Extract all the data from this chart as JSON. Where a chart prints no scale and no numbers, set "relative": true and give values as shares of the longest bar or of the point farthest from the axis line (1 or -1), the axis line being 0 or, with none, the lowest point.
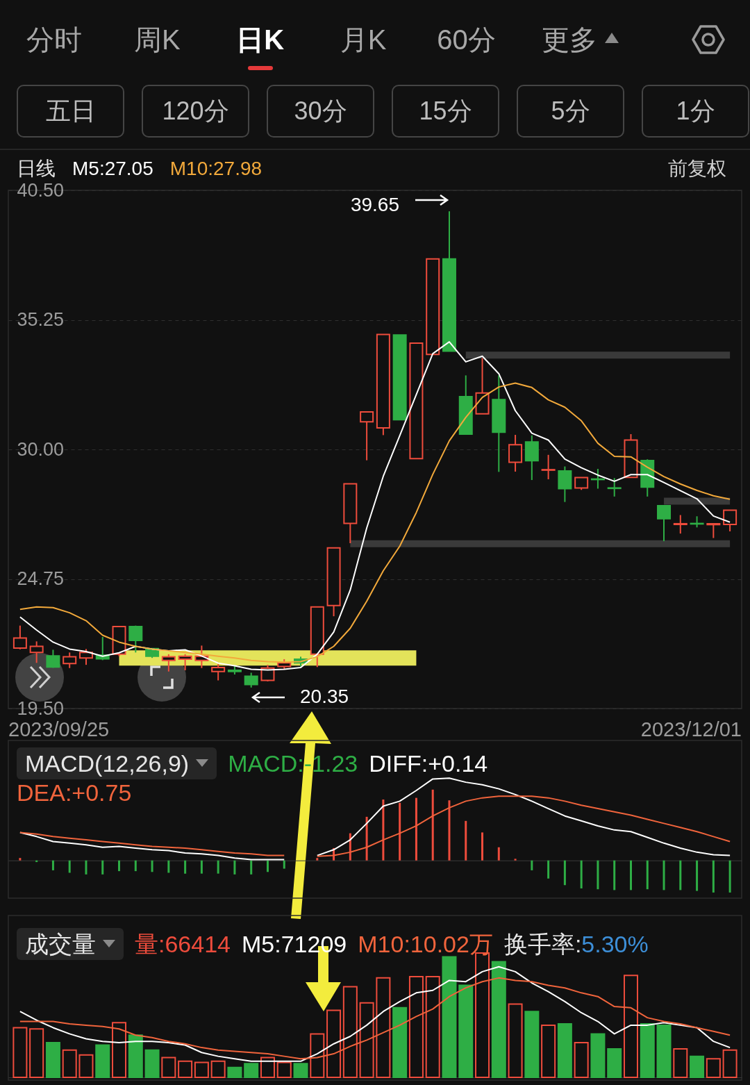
{
  "chart_data": [
    {
      "type": "other",
      "annotations": [
        "分时",
        "周K",
        "日K",
        "月K",
        "60分",
        "更多"
      ]
    },
    {
      "type": "other",
      "annotations": [
        "五日",
        "120分",
        "30分",
        "15分",
        "5分",
        "1分"
      ]
    },
    {
      "type": "candlestick",
      "title": "日线",
      "legend": "top left",
      "grid": "y",
      "categories": [
        null,
        null,
        null,
        null,
        null,
        null,
        null,
        null,
        null,
        null,
        null,
        null,
        null,
        null,
        null,
        null,
        null,
        null,
        null,
        null,
        null,
        null,
        null,
        null,
        null,
        null,
        null,
        null,
        null,
        null,
        null,
        null,
        null,
        null,
        null,
        null,
        null,
        null,
        null,
        null,
        null,
        null,
        null,
        null
      ],
      "ylim": [
        19.5,
        40.5
      ],
      "yticks": [
        {
          "value": 19.5,
          "label": "19.50"
        },
        24.75,
        {
          "value": 30,
          "label": "30.00"
        },
        35.25,
        {
          "value": 40.5,
          "label": "40.50"
        }
      ],
      "ohlc": [
        [
          21.95,
          22.86,
          21.9,
          22.36
        ],
        [
          21.77,
          22.22,
          21.35,
          22.02
        ],
        [
          21.63,
          21.88,
          21.15,
          21.18
        ],
        [
          21.32,
          21.77,
          21.14,
          21.6
        ],
        [
          21.55,
          21.91,
          21.27,
          21.77
        ],
        [
          21.66,
          22.4,
          21.46,
          21.51
        ],
        [
          21.7,
          22.82,
          21.62,
          22.82
        ],
        [
          22.82,
          22.86,
          21.77,
          22.26
        ],
        [
          21.93,
          21.95,
          21.55,
          21.62
        ],
        [
          21.45,
          21.7,
          21.0,
          21.6
        ],
        [
          21.5,
          21.7,
          21.05,
          21.62
        ],
        [
          21.45,
          22.05,
          21.14,
          21.62
        ],
        [
          21.0,
          21.3,
          20.64,
          21.16
        ],
        [
          21.05,
          21.23,
          20.88,
          21.0
        ],
        [
          20.81,
          20.95,
          20.35,
          20.47
        ],
        [
          20.64,
          21.27,
          20.6,
          21.14
        ],
        [
          21.2,
          21.5,
          21.1,
          21.35
        ],
        [
          21.5,
          21.6,
          21.2,
          21.35
        ],
        [
          21.7,
          23.62,
          21.18,
          23.62
        ],
        [
          23.67,
          26.01,
          23.24,
          26.01
        ],
        [
          27.0,
          28.61,
          26.2,
          28.61
        ],
        [
          31.12,
          31.52,
          29.56,
          31.52
        ],
        [
          30.87,
          34.66,
          30.58,
          34.66
        ],
        [
          34.64,
          34.64,
          31.2,
          31.2
        ],
        [
          29.63,
          34.31,
          29.63,
          34.31
        ],
        [
          33.85,
          37.72,
          33.85,
          37.72
        ],
        [
          37.72,
          39.65,
          33.98,
          33.98
        ],
        [
          32.14,
          33.0,
          30.62,
          30.62
        ],
        [
          31.44,
          33.7,
          31.44,
          32.29
        ],
        [
          32.02,
          33.0,
          29.09,
          30.7
        ],
        [
          29.48,
          30.59,
          29.1,
          30.19
        ],
        [
          30.3,
          30.57,
          28.76,
          29.54
        ],
        [
          29.16,
          29.78,
          28.79,
          29.18
        ],
        [
          29.13,
          29.31,
          27.87,
          28.41
        ],
        [
          28.44,
          28.86,
          28.36,
          28.86
        ],
        [
          28.8,
          29.21,
          28.41,
          28.78
        ],
        [
          28.44,
          28.84,
          28.09,
          28.42
        ],
        [
          28.87,
          30.62,
          28.87,
          30.38
        ],
        [
          29.55,
          29.6,
          28.09,
          28.47
        ],
        [
          27.72,
          27.72,
          26.28,
          27.19
        ],
        [
          26.96,
          27.34,
          26.59,
          26.99
        ],
        [
          27.0,
          27.29,
          26.84,
          26.98
        ],
        [
          26.95,
          26.99,
          26.41,
          26.99
        ],
        [
          26.96,
          27.54,
          26.68,
          27.54
        ]
      ],
      "colors": [
        "#ee4c3c",
        "#ee4c3c",
        "#2eae45",
        "#ee4c3c",
        "#ee4c3c",
        "#2eae45",
        "#ee4c3c",
        "#2eae45",
        "#2eae45",
        "#ee4c3c",
        "#ee4c3c",
        "#ee4c3c",
        "#ee4c3c",
        "#2eae45",
        "#2eae45",
        "#ee4c3c",
        "#ee4c3c",
        "#2eae45",
        "#ee4c3c",
        "#ee4c3c",
        "#ee4c3c",
        "#ee4c3c",
        "#ee4c3c",
        "#2eae45",
        "#ee4c3c",
        "#ee4c3c",
        "#2eae45",
        "#2eae45",
        "#ee4c3c",
        "#2eae45",
        "#ee4c3c",
        "#2eae45",
        "#ee4c3c",
        "#2eae45",
        "#ee4c3c",
        "#2eae45",
        "#2eae45",
        "#ee4c3c",
        "#2eae45",
        "#2eae45",
        "#ee4c3c",
        "#2eae45",
        "#ee4c3c",
        "#ee4c3c"
      ],
      "series": [
        {
          "type": "line",
          "color": "#3a3a3a",
          "values": [
            null,
            null,
            null,
            null,
            null,
            null,
            null,
            null,
            null,
            null,
            null,
            null,
            null,
            null,
            null,
            null,
            null,
            null,
            null,
            null,
            null,
            null,
            null,
            null,
            null,
            null,
            null,
            33.82,
            33.82,
            33.82,
            33.82,
            33.82,
            33.82,
            33.82,
            33.82,
            33.82,
            33.82,
            33.82,
            33.82,
            33.82,
            33.82,
            33.82,
            33.82,
            33.82
          ]
        },
        {
          "type": "line",
          "color": "#3a3a3a",
          "values": [
            null,
            null,
            null,
            null,
            null,
            null,
            null,
            null,
            null,
            null,
            null,
            null,
            null,
            null,
            null,
            null,
            null,
            null,
            null,
            null,
            26.18,
            26.18,
            26.18,
            26.18,
            26.18,
            26.18,
            26.18,
            26.18,
            26.18,
            26.18,
            26.18,
            26.18,
            26.18,
            26.18,
            26.18,
            26.18,
            26.18,
            26.18,
            26.18,
            26.18,
            26.18,
            26.18,
            26.18,
            26.18
          ]
        },
        {
          "type": "line",
          "color": "#3a3a3a",
          "values": [
            null,
            null,
            null,
            null,
            null,
            null,
            null,
            null,
            null,
            null,
            null,
            null,
            null,
            null,
            null,
            null,
            null,
            null,
            null,
            null,
            null,
            null,
            null,
            null,
            null,
            null,
            null,
            null,
            null,
            null,
            null,
            null,
            null,
            null,
            null,
            null,
            null,
            null,
            null,
            27.9,
            27.9,
            27.9,
            27.9,
            27.9
          ]
        },
        {
          "type": "line",
          "name": "M5:27.05",
          "color": "#ffffff",
          "values": [
            23.21,
            22.68,
            22.19,
            21.91,
            21.81,
            21.62,
            21.76,
            22.02,
            21.91,
            21.84,
            21.88,
            21.63,
            21.34,
            21.23,
            21.09,
            21.06,
            21.09,
            21.16,
            21.7,
            22.6,
            24.3,
            26.82,
            28.91,
            30.56,
            32.22,
            33.88,
            34.36,
            33.55,
            33.78,
            33.07,
            31.57,
            30.66,
            30.38,
            29.61,
            29.26,
            28.96,
            28.71,
            28.98,
            28.98,
            28.66,
            28.33,
            28.0,
            27.3,
            27.05
          ]
        },
        {
          "type": "line",
          "name": "M10:27.98",
          "color": "#f2a93b",
          "values": [
            23.52,
            23.62,
            23.59,
            23.38,
            23.06,
            22.47,
            22.19,
            22.02,
            21.91,
            21.84,
            21.77,
            21.7,
            21.62,
            21.55,
            21.45,
            21.4,
            21.38,
            21.4,
            21.6,
            22.02,
            22.75,
            23.85,
            25.08,
            26.08,
            27.44,
            28.99,
            30.35,
            31.3,
            32.11,
            32.53,
            32.69,
            32.51,
            32.01,
            31.71,
            31.16,
            30.25,
            29.72,
            29.7,
            29.28,
            28.9,
            28.6,
            28.34,
            28.12,
            27.98
          ]
        },
        {
          "type": "line",
          "color": "#e3e35a",
          "values": [
            null,
            null,
            null,
            null,
            null,
            null,
            21.55,
            21.55,
            21.55,
            21.55,
            21.55,
            21.55,
            21.55,
            21.55,
            21.55,
            21.55,
            21.55,
            21.55,
            21.55,
            21.55,
            21.55,
            21.55,
            21.55,
            21.55,
            21.55,
            null,
            null,
            null,
            null,
            null,
            null,
            null,
            null,
            null,
            null,
            null,
            null,
            null,
            null,
            null,
            null,
            null,
            null,
            null
          ]
        }
      ],
      "annotations": [
        "前复权",
        "39.65",
        "20.35",
        "2023/09/25",
        "2023/12/01"
      ]
    },
    {
      "type": "bar",
      "title": "MACD(12,26,9)",
      "relative": true,
      "legend": "top left",
      "categories": [
        null,
        null,
        null,
        null,
        null,
        null,
        null,
        null,
        null,
        null,
        null,
        null,
        null,
        null,
        null,
        null,
        null,
        null,
        null,
        null,
        null,
        null,
        null,
        null,
        null,
        null,
        null,
        null,
        null,
        null,
        null,
        null,
        null,
        null,
        null,
        null,
        null,
        null,
        null,
        null,
        null,
        null,
        null,
        null
      ],
      "series": [
        {
          "type": "bar",
          "name": "MACD:-1.23",
          "colors": [
            "#ee4c3c",
            "#2eae45",
            "#2eae45",
            "#2eae45",
            "#2eae45",
            "#2eae45",
            "#2eae45",
            "#2eae45",
            "#2eae45",
            "#2eae45",
            "#2eae45",
            "#2eae45",
            "#2eae45",
            "#2eae45",
            "#2eae45",
            "#2eae45",
            "#2eae45",
            null,
            "#ee4c3c",
            "#ee4c3c",
            "#ee4c3c",
            "#ee4c3c",
            "#ee4c3c",
            "#ee4c3c",
            "#ee4c3c",
            "#ee4c3c",
            "#ee4c3c",
            "#ee4c3c",
            "#ee4c3c",
            "#ee4c3c",
            "#ee4c3c",
            "#2eae45",
            "#2eae45",
            "#2eae45",
            "#2eae45",
            "#2eae45",
            "#2eae45",
            "#2eae45",
            "#2eae45",
            "#2eae45",
            "#2eae45",
            "#2eae45",
            "#2eae45",
            "#2eae45"
          ],
          "values": [
            0.03,
            -0.02,
            -0.12,
            -0.15,
            -0.17,
            -0.17,
            -0.13,
            -0.13,
            -0.14,
            -0.15,
            -0.16,
            -0.16,
            -0.16,
            -0.17,
            -0.17,
            -0.14,
            -0.1,
            null,
            0.03,
            0.15,
            0.33,
            0.53,
            0.74,
            0.7,
            0.76,
            0.86,
            0.73,
            0.48,
            0.34,
            0.16,
            0.02,
            -0.12,
            -0.22,
            -0.3,
            -0.34,
            -0.35,
            -0.36,
            -0.36,
            -0.35,
            -0.36,
            -0.36,
            -0.37,
            -0.39,
            -0.39
          ]
        },
        {
          "type": "line",
          "name": "DIFF:+0.14",
          "color": "#ffffff",
          "values": [
            0.34,
            0.29,
            0.23,
            0.21,
            0.19,
            0.16,
            0.17,
            0.15,
            0.13,
            0.12,
            0.09,
            0.08,
            0.06,
            0.03,
            0.01,
            0.01,
            0.01,
            null,
            0.06,
            0.13,
            0.25,
            0.45,
            0.66,
            0.72,
            0.85,
            0.99,
            1,
            0.95,
            0.92,
            0.87,
            0.8,
            0.72,
            0.63,
            0.54,
            0.48,
            0.42,
            0.37,
            0.35,
            0.28,
            0.21,
            0.15,
            0.1,
            0.07,
            0.06
          ]
        },
        {
          "type": "line",
          "name": "DEA:+0.75",
          "color": "#f0643c",
          "values": [
            0.34,
            0.32,
            0.29,
            0.27,
            0.25,
            0.23,
            0.21,
            0.19,
            0.17,
            0.16,
            0.15,
            0.13,
            0.11,
            0.09,
            0.08,
            0.06,
            0.06,
            null,
            0.05,
            0.06,
            0.1,
            0.16,
            0.25,
            0.33,
            0.42,
            0.54,
            0.64,
            0.72,
            0.76,
            0.78,
            0.78,
            0.78,
            0.76,
            0.72,
            0.67,
            0.63,
            0.59,
            0.55,
            0.5,
            0.45,
            0.4,
            0.35,
            0.29,
            0.23
          ]
        }
      ]
    },
    {
      "type": "bar",
      "title": "成交量",
      "relative": true,
      "legend": "top left",
      "categories": [
        null,
        null,
        null,
        null,
        null,
        null,
        null,
        null,
        null,
        null,
        null,
        null,
        null,
        null,
        null,
        null,
        null,
        null,
        null,
        null,
        null,
        null,
        null,
        null,
        null,
        null,
        null,
        null,
        null,
        null,
        null,
        null,
        null,
        null,
        null,
        null,
        null,
        null,
        null,
        null,
        null,
        null,
        null,
        null
      ],
      "series": [
        {
          "type": "bar",
          "name": "量:66414",
          "colors": [
            "#ee4c3c",
            "#ee4c3c",
            "#2eae45",
            "#ee4c3c",
            "#ee4c3c",
            "#2eae45",
            "#ee4c3c",
            "#2eae45",
            "#2eae45",
            "#ee4c3c",
            "#ee4c3c",
            "#ee4c3c",
            "#ee4c3c",
            "#2eae45",
            "#2eae45",
            "#ee4c3c",
            "#ee4c3c",
            "#2eae45",
            "#ee4c3c",
            "#ee4c3c",
            "#ee4c3c",
            "#ee4c3c",
            "#ee4c3c",
            "#2eae45",
            "#ee4c3c",
            "#ee4c3c",
            "#2eae45",
            "#2eae45",
            "#ee4c3c",
            "#2eae45",
            "#ee4c3c",
            "#2eae45",
            "#ee4c3c",
            "#2eae45",
            "#ee4c3c",
            "#2eae45",
            "#2eae45",
            "#ee4c3c",
            "#2eae45",
            "#2eae45",
            "#ee4c3c",
            "#2eae45",
            "#ee4c3c",
            "#ee4c3c"
          ],
          "values": [
            0.4,
            0.39,
            0.28,
            0.22,
            0.18,
            0.26,
            0.44,
            0.34,
            0.22,
            0.16,
            0.13,
            0.12,
            0.13,
            0.08,
            0.11,
            0.16,
            0.12,
            0.11,
            0.35,
            0.54,
            0.73,
            0.6,
            0.8,
            0.56,
            0.81,
            0.81,
            0.97,
            0.74,
            1,
            0.93,
            0.59,
            0.53,
            0.42,
            0.43,
            0.28,
            0.35,
            0.23,
            0.82,
            0.43,
            0.42,
            0.23,
            0.17,
            0.15,
            0.22
          ]
        },
        {
          "type": "line",
          "name": "M5:71209",
          "color": "#ffffff",
          "values": [
            0.53,
            0.46,
            0.4,
            0.35,
            0.31,
            0.29,
            0.28,
            0.29,
            0.29,
            0.28,
            0.26,
            0.2,
            0.17,
            0.15,
            0.13,
            0.13,
            0.13,
            0.13,
            0.19,
            0.27,
            0.33,
            0.42,
            0.53,
            0.61,
            0.68,
            0.7,
            0.78,
            0.77,
            0.85,
            0.89,
            0.85,
            0.76,
            0.69,
            0.61,
            0.52,
            0.45,
            0.35,
            0.42,
            0.42,
            0.44,
            0.42,
            0.4,
            0.29,
            0.24
          ]
        },
        {
          "type": "line",
          "name": "M10:10.02万",
          "color": "#f0643c",
          "values": [
            0.45,
            0.45,
            0.45,
            0.43,
            0.42,
            0.41,
            0.39,
            0.34,
            0.32,
            0.29,
            0.27,
            0.24,
            0.22,
            0.21,
            0.2,
            0.19,
            0.17,
            0.15,
            0.16,
            0.19,
            0.25,
            0.3,
            0.36,
            0.42,
            0.49,
            0.55,
            0.65,
            0.72,
            0.77,
            0.8,
            0.78,
            0.77,
            0.74,
            0.72,
            0.68,
            0.65,
            0.57,
            0.56,
            0.48,
            0.45,
            0.43,
            0.4,
            0.37,
            0.34
          ]
        }
      ],
      "annotations": [
        "换手率:5.30%"
      ]
    }
  ]
}
